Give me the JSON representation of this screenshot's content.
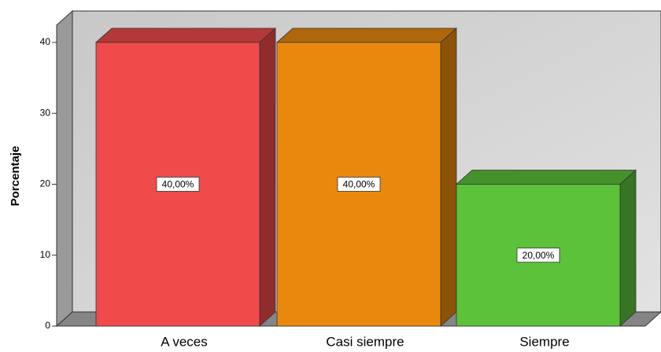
{
  "chart_data": {
    "type": "bar3d",
    "ylabel": "Porcentaje",
    "categories": [
      "A veces",
      "Casi siempre",
      "Siempre"
    ],
    "values": [
      40,
      40,
      20
    ],
    "value_labels": [
      "40,00%",
      "40,00%",
      "20,00%"
    ],
    "colors": [
      "#f04a4a",
      "#e8890e",
      "#5cc23a"
    ],
    "ylim": [
      0,
      42.5
    ],
    "yticks": [
      0,
      10,
      20,
      30,
      40
    ]
  }
}
